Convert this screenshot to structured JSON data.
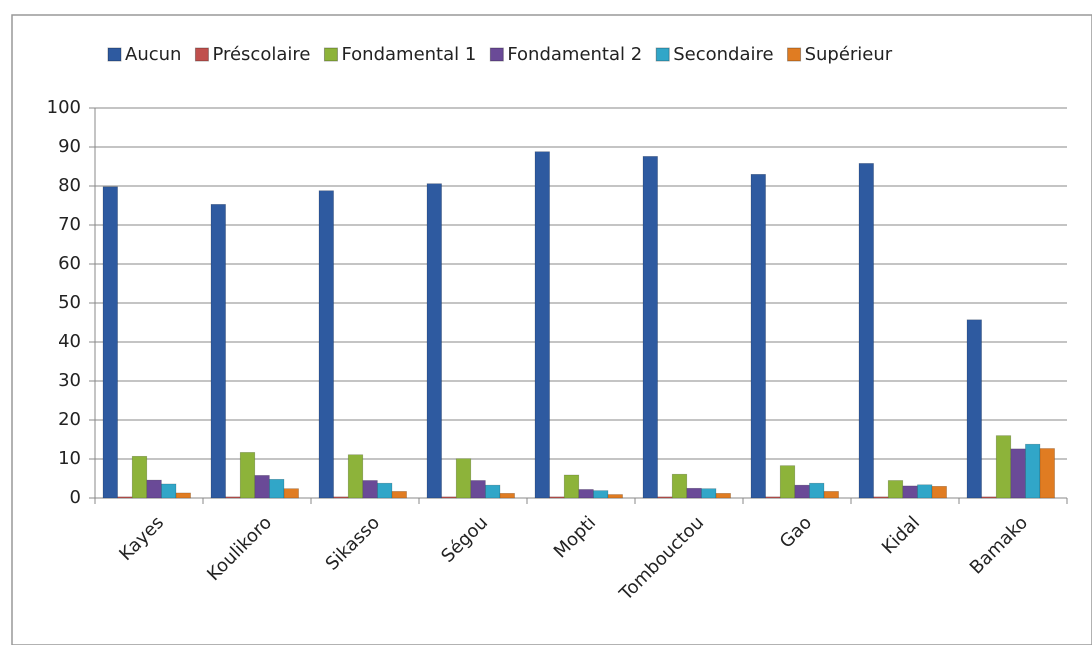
{
  "chart_data": {
    "type": "bar",
    "categories": [
      "Kayes",
      "Koulikoro",
      "Sikasso",
      "Ségou",
      "Mopti",
      "Tombouctou",
      "Gao",
      "Kidal",
      "Bamako"
    ],
    "series": [
      {
        "name": "Aucun",
        "color": "#2e5aa0",
        "values": [
          79.8,
          75.3,
          78.8,
          80.6,
          88.8,
          87.6,
          83.0,
          85.8,
          45.7
        ]
      },
      {
        "name": "Préscolaire",
        "color": "#c0504d",
        "values": [
          0.3,
          0.3,
          0.3,
          0.3,
          0.3,
          0.3,
          0.3,
          0.3,
          0.3
        ]
      },
      {
        "name": "Fondamental 1",
        "color": "#8db33a",
        "values": [
          10.7,
          11.7,
          11.1,
          10.1,
          5.9,
          6.1,
          8.3,
          4.5,
          16.0
        ]
      },
      {
        "name": "Fondamental 2",
        "color": "#6a4a97",
        "values": [
          4.6,
          5.8,
          4.5,
          4.5,
          2.2,
          2.5,
          3.3,
          3.1,
          12.6
        ]
      },
      {
        "name": "Secondaire",
        "color": "#31a6c8",
        "values": [
          3.6,
          4.8,
          3.8,
          3.3,
          1.9,
          2.4,
          3.8,
          3.4,
          13.8
        ]
      },
      {
        "name": "Supérieur",
        "color": "#e07c22",
        "values": [
          1.3,
          2.4,
          1.7,
          1.2,
          0.9,
          1.2,
          1.7,
          3.0,
          12.7
        ]
      }
    ],
    "ylim": [
      0,
      100
    ],
    "yticks": [
      0,
      10,
      20,
      30,
      40,
      50,
      60,
      70,
      80,
      90,
      100
    ],
    "grid": true,
    "legend": "top"
  }
}
